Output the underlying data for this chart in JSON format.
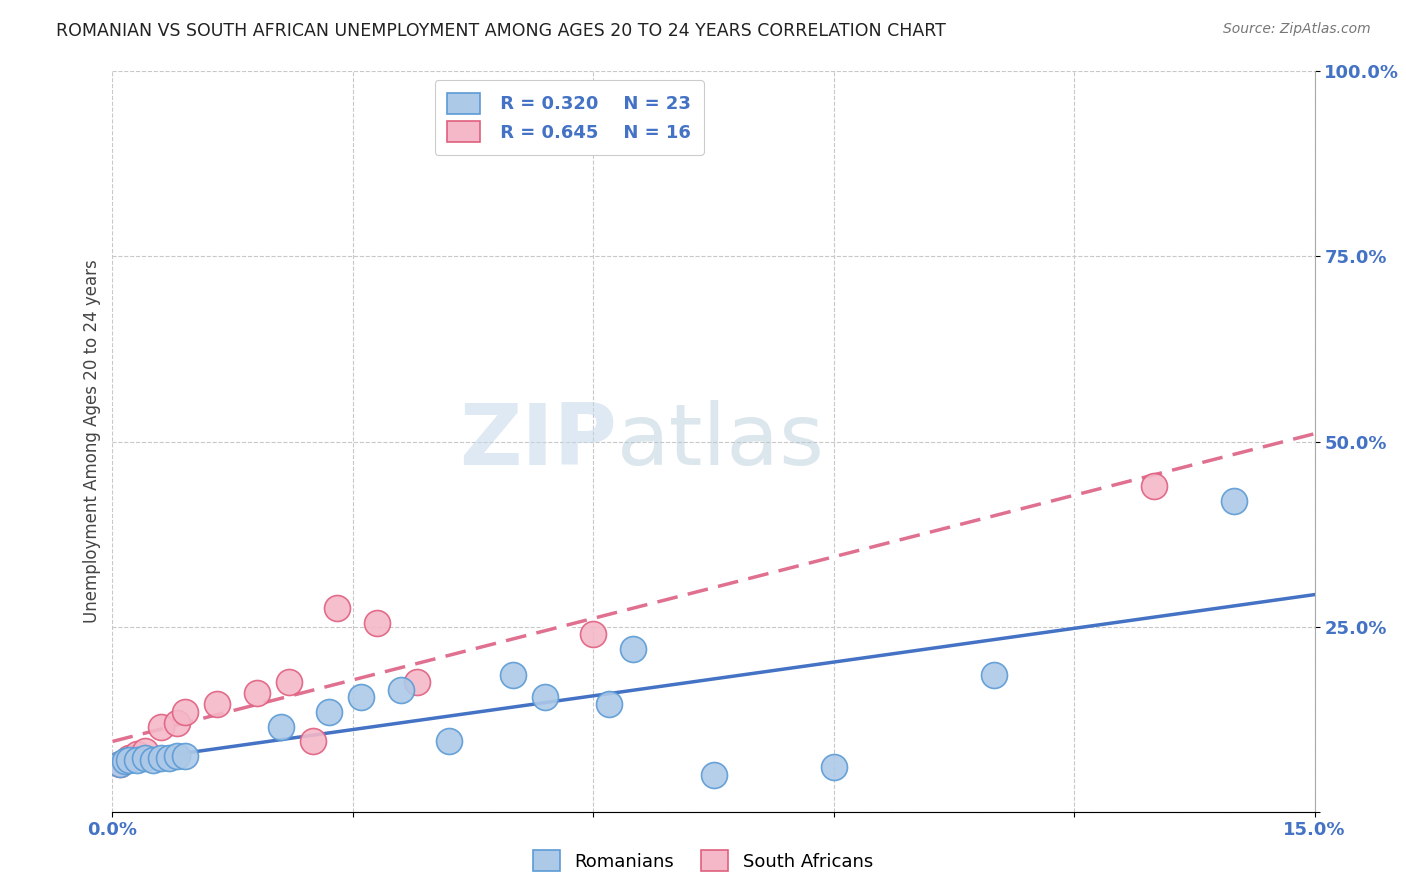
{
  "title": "ROMANIAN VS SOUTH AFRICAN UNEMPLOYMENT AMONG AGES 20 TO 24 YEARS CORRELATION CHART",
  "source": "Source: ZipAtlas.com",
  "ylabel": "Unemployment Among Ages 20 to 24 years",
  "xlim": [
    0.0,
    0.15
  ],
  "ylim": [
    0.0,
    1.0
  ],
  "xticks": [
    0.0,
    0.03,
    0.06,
    0.09,
    0.12,
    0.15
  ],
  "xticklabels": [
    "0.0%",
    "",
    "",
    "",
    "",
    "15.0%"
  ],
  "yticks_right": [
    0.0,
    0.25,
    0.5,
    0.75,
    1.0
  ],
  "yticklabels_right": [
    "",
    "25.0%",
    "50.0%",
    "75.0%",
    "100.0%"
  ],
  "grid_color": "#c8c8c8",
  "background_color": "#ffffff",
  "romanians_color": "#adc9e8",
  "romanians_edge_color": "#5b9bd5",
  "south_africans_color": "#f4b8c8",
  "south_africans_edge_color": "#e06080",
  "line_romanian_color": "#4472c4",
  "line_sa_color": "#d0d0d0",
  "line_sa_color2": "#e07090",
  "legend_text_color": "#4472c4",
  "tick_color": "#4472c4",
  "watermark_zip_color": "#c8d8e8",
  "watermark_atlas_color": "#b0c8d8",
  "romanians_x": [
    0.001,
    0.0015,
    0.002,
    0.003,
    0.004,
    0.005,
    0.006,
    0.007,
    0.008,
    0.009,
    0.021,
    0.027,
    0.031,
    0.036,
    0.042,
    0.05,
    0.054,
    0.062,
    0.065,
    0.075,
    0.09,
    0.11,
    0.14
  ],
  "romanians_y": [
    0.065,
    0.068,
    0.07,
    0.07,
    0.072,
    0.07,
    0.072,
    0.073,
    0.075,
    0.075,
    0.115,
    0.135,
    0.155,
    0.165,
    0.095,
    0.185,
    0.155,
    0.145,
    0.22,
    0.05,
    0.06,
    0.185,
    0.42
  ],
  "south_africans_x": [
    0.001,
    0.002,
    0.003,
    0.004,
    0.006,
    0.008,
    0.009,
    0.013,
    0.018,
    0.022,
    0.025,
    0.028,
    0.033,
    0.038,
    0.06,
    0.13
  ],
  "south_africans_y": [
    0.065,
    0.072,
    0.078,
    0.082,
    0.115,
    0.12,
    0.135,
    0.145,
    0.16,
    0.175,
    0.095,
    0.275,
    0.255,
    0.175,
    0.24,
    0.44
  ]
}
